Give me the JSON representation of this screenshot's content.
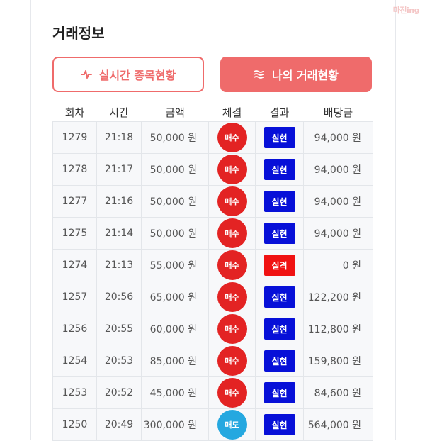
{
  "watermark": "마진ing",
  "page_title": "거래정보",
  "buttons": {
    "realtime_label": "실시간 종목현황",
    "mytrade_label": "나의 거래현황"
  },
  "table": {
    "headers": [
      "회차",
      "시간",
      "금액",
      "체결",
      "결과",
      "배당금"
    ],
    "rows": [
      {
        "round": "1279",
        "time": "21:18",
        "amount": "50,000 원",
        "trade": "매수",
        "trade_type": "buy",
        "result": "실현",
        "result_type": "hit",
        "payout": "94,000 원"
      },
      {
        "round": "1278",
        "time": "21:17",
        "amount": "50,000 원",
        "trade": "매수",
        "trade_type": "buy",
        "result": "실현",
        "result_type": "hit",
        "payout": "94,000 원"
      },
      {
        "round": "1277",
        "time": "21:16",
        "amount": "50,000 원",
        "trade": "매수",
        "trade_type": "buy",
        "result": "실현",
        "result_type": "hit",
        "payout": "94,000 원"
      },
      {
        "round": "1275",
        "time": "21:14",
        "amount": "50,000 원",
        "trade": "매수",
        "trade_type": "buy",
        "result": "실현",
        "result_type": "hit",
        "payout": "94,000 원"
      },
      {
        "round": "1274",
        "time": "21:13",
        "amount": "55,000 원",
        "trade": "매수",
        "trade_type": "buy",
        "result": "실격",
        "result_type": "miss",
        "payout": "0 원"
      },
      {
        "round": "1257",
        "time": "20:56",
        "amount": "65,000 원",
        "trade": "매수",
        "trade_type": "buy",
        "result": "실현",
        "result_type": "hit",
        "payout": "122,200 원"
      },
      {
        "round": "1256",
        "time": "20:55",
        "amount": "60,000 원",
        "trade": "매수",
        "trade_type": "buy",
        "result": "실현",
        "result_type": "hit",
        "payout": "112,800 원"
      },
      {
        "round": "1254",
        "time": "20:53",
        "amount": "85,000 원",
        "trade": "매수",
        "trade_type": "buy",
        "result": "실현",
        "result_type": "hit",
        "payout": "159,800 원"
      },
      {
        "round": "1253",
        "time": "20:52",
        "amount": "45,000 원",
        "trade": "매수",
        "trade_type": "buy",
        "result": "실현",
        "result_type": "hit",
        "payout": "84,600 원"
      },
      {
        "round": "1250",
        "time": "20:49",
        "amount": "300,000 원",
        "trade": "매도",
        "trade_type": "sell",
        "result": "실현",
        "result_type": "hit",
        "payout": "564,000 원"
      }
    ]
  },
  "colors": {
    "accent": "#ef6b6b",
    "buy": "#e32323",
    "sell": "#25a8e0",
    "hit": "#0710d8",
    "miss": "#f01212"
  },
  "icons": {
    "realtime": "pulse-icon",
    "mytrade": "waves-icon"
  }
}
